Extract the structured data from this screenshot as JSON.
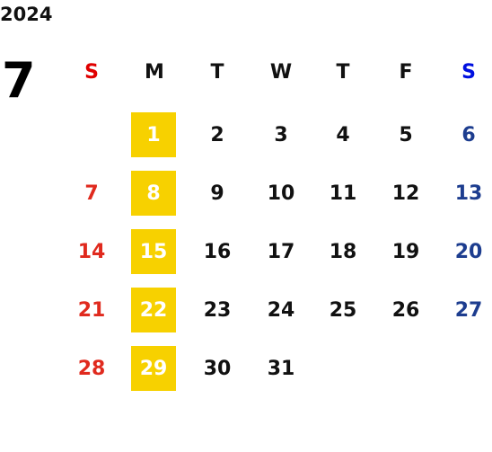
{
  "year": "2024",
  "month": "7",
  "weekdays": [
    "S",
    "M",
    "T",
    "W",
    "T",
    "F",
    "S"
  ],
  "weeks": [
    [
      null,
      1,
      2,
      3,
      4,
      5,
      6
    ],
    [
      7,
      8,
      9,
      10,
      11,
      12,
      13
    ],
    [
      14,
      15,
      16,
      17,
      18,
      19,
      20
    ],
    [
      21,
      22,
      23,
      24,
      25,
      26,
      27
    ],
    [
      28,
      29,
      30,
      31,
      null,
      null,
      null
    ]
  ]
}
